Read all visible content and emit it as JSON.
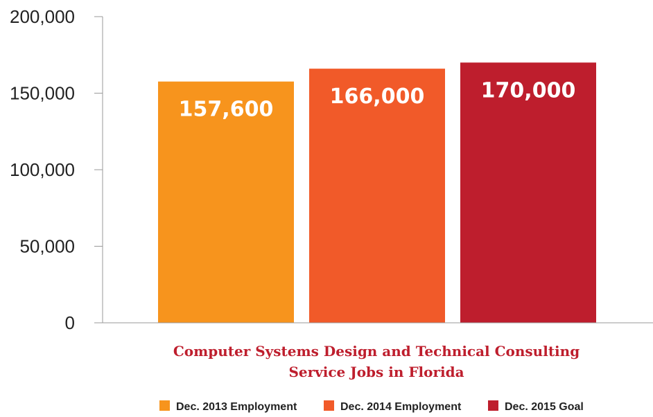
{
  "chart_data": {
    "type": "bar",
    "categories": [
      "Dec. 2013 Employment",
      "Dec. 2014 Employment",
      "Dec. 2015 Goal"
    ],
    "values": [
      157600,
      166000,
      170000
    ],
    "value_labels": [
      "157,600",
      "166,000",
      "170,000"
    ],
    "colors": [
      "#f7941d",
      "#f15a29",
      "#be1e2d"
    ],
    "title": [
      "Computer Systems Design and Technical Consulting",
      "Service Jobs in Florida"
    ],
    "title_color": "#be1e2d",
    "xlabel": "",
    "ylabel": "",
    "ylim": [
      0,
      200000
    ],
    "yticks": [
      0,
      50000,
      100000,
      150000,
      200000
    ],
    "ytick_labels": [
      "0",
      "50,000",
      "100,000",
      "150,000",
      "200,000"
    ],
    "grid": false,
    "legend": {
      "position": "bottom",
      "entries": [
        {
          "label": "Dec. 2013 Employment",
          "color": "#f7941d"
        },
        {
          "label": "Dec. 2014 Employment",
          "color": "#f15a29"
        },
        {
          "label": "Dec. 2015 Goal",
          "color": "#be1e2d"
        }
      ]
    }
  }
}
